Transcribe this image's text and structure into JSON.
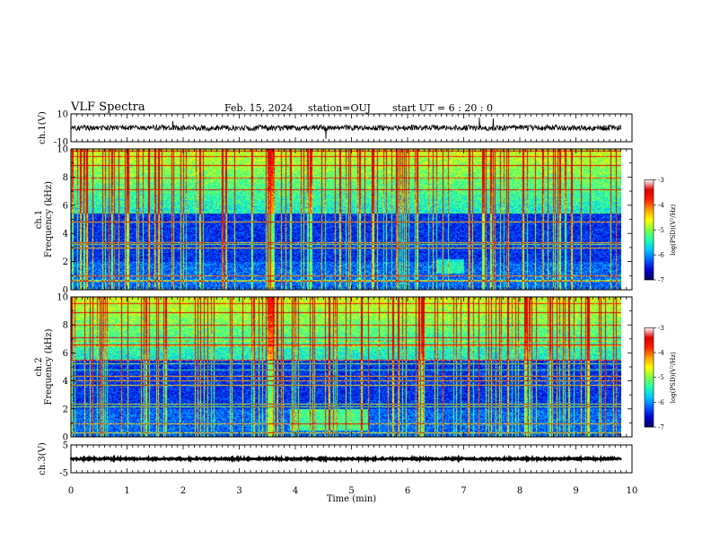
{
  "header": {
    "title": "VLF Spectra",
    "date": "Feb. 15, 2024",
    "station": "station=OUJ",
    "start": "start  UT  =   6  : 20 : 0"
  },
  "colors": {
    "line": "#000000",
    "colormap": [
      "#000060",
      "#0000d0",
      "#0060ff",
      "#00c8ff",
      "#20ffb0",
      "#80ff40",
      "#ffff00",
      "#ffa000",
      "#ff2000",
      "#e00000",
      "#ffffff"
    ]
  },
  "chart_data": [
    {
      "type": "line",
      "panel": "ch1-waveform",
      "ylabel": "ch.1(V)",
      "ylim": [
        -10,
        10
      ],
      "yticks": [
        "10",
        "-10"
      ],
      "xlim": [
        0,
        10
      ],
      "level": 0,
      "amplitude": 2
    },
    {
      "type": "heatmap",
      "panel": "ch1-spectrogram",
      "ylabel_top": "ch.1",
      "ylabel": "Frequency (kHz)",
      "ylim": [
        0,
        10
      ],
      "yticks": [
        "0",
        "2",
        "4",
        "6",
        "8",
        "10"
      ],
      "xlim": [
        0,
        9.8
      ],
      "colorbar": {
        "label": "log(PSD)(V²/Hz)",
        "range": [
          -7,
          -3
        ],
        "ticks": [
          "-3",
          "-4",
          "-5",
          "-6",
          "-7"
        ]
      }
    },
    {
      "type": "heatmap",
      "panel": "ch2-spectrogram",
      "ylabel_top": "ch.2",
      "ylabel": "Frequency (kHz)",
      "ylim": [
        0,
        10
      ],
      "yticks": [
        "0",
        "2",
        "4",
        "6",
        "8",
        "10"
      ],
      "xlim": [
        0,
        9.8
      ],
      "colorbar": {
        "label": "log(PSD)(V²/Hz)",
        "range": [
          -7,
          -3
        ],
        "ticks": [
          "-3",
          "-4",
          "-5",
          "-6",
          "-7"
        ]
      }
    },
    {
      "type": "line",
      "panel": "ch3-waveform",
      "ylabel": "ch.3(V)",
      "ylim": [
        -5,
        5
      ],
      "yticks": [
        "5",
        "-5"
      ],
      "xlim": [
        0,
        9.8
      ],
      "level": 0,
      "amplitude": 0.3
    }
  ],
  "xaxis": {
    "label": "Time  (min)",
    "range": [
      0,
      10
    ],
    "ticks": [
      "0",
      "1",
      "2",
      "3",
      "4",
      "5",
      "6",
      "7",
      "8",
      "9",
      "10"
    ]
  }
}
